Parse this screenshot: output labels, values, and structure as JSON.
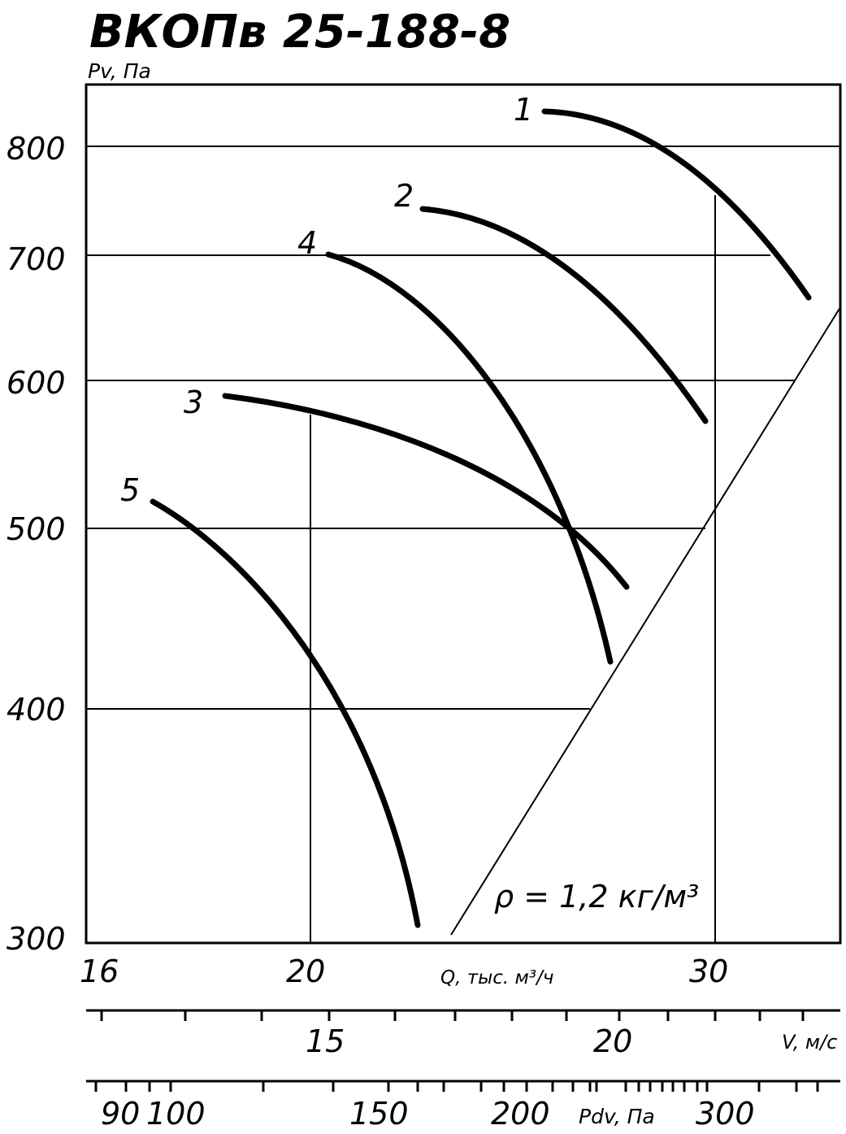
{
  "chart_data": {
    "type": "line",
    "title": "ВКОПв 25-188-8",
    "ylabel": "Pv, Па",
    "xlabel": "Q, тыс. м³/ч",
    "y_scale": "log",
    "x_scale": "log",
    "ylim": [
      300,
      850
    ],
    "xlim": [
      16,
      33.8
    ],
    "y_ticks": [
      800,
      700,
      600,
      500,
      400,
      300
    ],
    "x_ticks": [
      16,
      20,
      30
    ],
    "grid": true,
    "series": [
      {
        "name": "1",
        "x": [
          27.8,
          28.5,
          29.5,
          30.5,
          31.5,
          32.5,
          33.4
        ],
        "y": [
          825,
          818,
          800,
          775,
          740,
          700,
          655
        ]
      },
      {
        "name": "2",
        "x": [
          24.9,
          26.0,
          27.5,
          28.5,
          29.2,
          29.8
        ],
        "y": [
          740,
          730,
          700,
          660,
          620,
          570
        ]
      },
      {
        "name": "4",
        "x": [
          22.8,
          23.5,
          24.5,
          25.5,
          26.5,
          27.3,
          28.0
        ],
        "y": [
          700,
          690,
          655,
          600,
          520,
          460,
          420
        ]
      },
      {
        "name": "3",
        "x": [
          18.6,
          19.5,
          21.0,
          23.0,
          25.0,
          27.0,
          28.4
        ],
        "y": [
          588,
          582,
          570,
          546,
          516,
          488,
          465
        ]
      },
      {
        "name": "5",
        "x": [
          17.2,
          17.6,
          18.5,
          19.5,
          20.5,
          21.5,
          22.3
        ],
        "y": [
          518,
          510,
          480,
          440,
          400,
          355,
          305
        ]
      }
    ],
    "annotations": {
      "density": "ρ = 1,2 кг/м³",
      "dynamic_pressure_line": "Pdv"
    },
    "secondary_axes": {
      "velocity": {
        "label": "V, м/с",
        "tick_labels": [
          "15",
          "20"
        ]
      },
      "dynamic_pressure": {
        "label": "Pdv, Па",
        "tick_labels": [
          "90",
          "100",
          "150",
          "200",
          "300"
        ]
      }
    }
  }
}
